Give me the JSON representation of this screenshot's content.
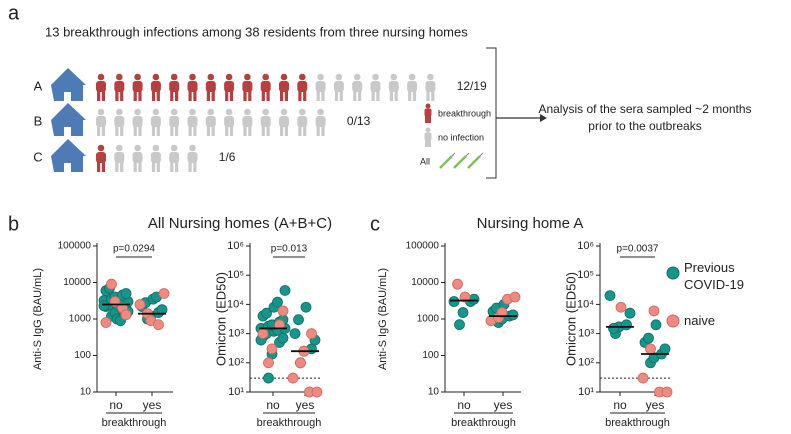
{
  "figure": {
    "label": "a",
    "title": "13 breakthrough infections among 38 residents from three nursing homes",
    "homes": [
      {
        "name": "A",
        "breakthrough": 12,
        "total": 19,
        "fraction": "12/19"
      },
      {
        "name": "B",
        "breakthrough": 0,
        "total": 13,
        "fraction": "0/13"
      },
      {
        "name": "C",
        "breakthrough": 1,
        "total": 6,
        "fraction": "1/6"
      }
    ],
    "legend": {
      "breakthrough": "breakthrough",
      "no_infection": "no infection",
      "vaccinated": "All"
    },
    "analysis": [
      "Analysis of the sera sampled ~2 months",
      "prior to the outbreaks"
    ]
  },
  "panels": [
    {
      "label": "b",
      "title": "All Nursing homes (A+B+C)"
    },
    {
      "label": "c",
      "title": "Nursing home A"
    }
  ],
  "chart_data": [
    {
      "type": "scatter",
      "ylabel": "Anti-S IgG (BAU/mL)",
      "xlabel": "breakthrough",
      "categories": [
        "no",
        "yes"
      ],
      "log_scale": true,
      "ylim": [
        10,
        100000
      ],
      "yticks": [
        10,
        100,
        1000,
        10000,
        100000
      ],
      "annotation": "p=0.0294",
      "medians": [
        2500,
        1400
      ],
      "series": [
        {
          "name": "Previous COVID-19",
          "color": "#16968a",
          "x": [
            "no",
            "no",
            "no",
            "no",
            "no",
            "no",
            "no",
            "no",
            "no",
            "no",
            "no",
            "no",
            "no",
            "no",
            "no",
            "no",
            "no",
            "no",
            "no",
            "no",
            "yes",
            "yes",
            "yes",
            "yes",
            "yes",
            "yes",
            "yes",
            "yes"
          ],
          "values": [
            1200,
            1500,
            1800,
            2000,
            2200,
            2500,
            2500,
            2800,
            3000,
            3200,
            3500,
            4000,
            4500,
            5000,
            6000,
            7000,
            1000,
            900,
            1600,
            2300,
            1000,
            1200,
            1500,
            1800,
            2200,
            2800,
            3500,
            4000
          ]
        },
        {
          "name": "naive",
          "color": "#f08a80",
          "x": [
            "no",
            "no",
            "no",
            "no",
            "no",
            "yes",
            "yes",
            "yes",
            "yes",
            "yes"
          ],
          "values": [
            9000,
            3000,
            2000,
            1300,
            800,
            5000,
            2500,
            1400,
            900,
            700
          ]
        }
      ]
    },
    {
      "type": "scatter",
      "ylabel": "Omicron (ED50)",
      "xlabel": "breakthrough",
      "categories": [
        "no",
        "yes"
      ],
      "log_scale": true,
      "ylim": [
        10,
        1000000
      ],
      "yticks": [
        {
          "value": 10,
          "label": "10¹"
        },
        {
          "value": 100,
          "label": "10²"
        },
        {
          "value": 1000,
          "label": "10³"
        },
        {
          "value": 10000,
          "label": "10⁴"
        },
        {
          "value": 100000,
          "label": "10⁵"
        },
        {
          "value": 1000000,
          "label": "10⁶"
        }
      ],
      "annotation": "p=0.013",
      "medians": [
        1500,
        250
      ],
      "reference_line": 30,
      "series": [
        {
          "name": "Previous COVID-19",
          "color": "#16968a",
          "x": [
            "no",
            "no",
            "no",
            "no",
            "no",
            "no",
            "no",
            "no",
            "no",
            "no",
            "no",
            "no",
            "no",
            "no",
            "no",
            "no",
            "no",
            "no",
            "no",
            "no",
            "yes",
            "yes",
            "yes",
            "yes",
            "yes",
            "yes",
            "yes"
          ],
          "values": [
            30,
            200,
            500,
            700,
            800,
            1000,
            1200,
            1300,
            1500,
            1500,
            1800,
            2000,
            2500,
            3000,
            4000,
            5000,
            8000,
            12000,
            30000,
            600,
            100,
            250,
            300,
            600,
            1000,
            3000,
            8000
          ]
        },
        {
          "name": "naive",
          "color": "#f08a80",
          "x": [
            "no",
            "no",
            "no",
            "no",
            "no",
            "yes",
            "yes",
            "yes",
            "yes",
            "yes",
            "yes"
          ],
          "values": [
            100,
            300,
            2000,
            6000,
            1000,
            10,
            10,
            30,
            100,
            250,
            1000
          ]
        }
      ]
    },
    {
      "type": "scatter",
      "ylabel": "Anti-S IgG (BAU/mL)",
      "xlabel": "breakthrough",
      "categories": [
        "no",
        "yes"
      ],
      "log_scale": true,
      "ylim": [
        10,
        100000
      ],
      "yticks": [
        10,
        100,
        1000,
        10000,
        100000
      ],
      "medians": [
        3200,
        1200
      ],
      "series": [
        {
          "name": "Previous COVID-19",
          "color": "#16968a",
          "x": [
            "no",
            "no",
            "no",
            "no",
            "no",
            "yes",
            "yes",
            "yes",
            "yes",
            "yes",
            "yes",
            "yes"
          ],
          "values": [
            700,
            1500,
            3000,
            3500,
            3000,
            800,
            1000,
            1200,
            1300,
            1600,
            2000,
            2500
          ]
        },
        {
          "name": "naive",
          "color": "#f08a80",
          "x": [
            "no",
            "no",
            "yes",
            "yes",
            "yes",
            "yes",
            "yes"
          ],
          "values": [
            9000,
            4000,
            3500,
            4000,
            900,
            1100,
            1500
          ]
        }
      ]
    },
    {
      "type": "scatter",
      "ylabel": "Omicron (ED50)",
      "xlabel": "breakthrough",
      "categories": [
        "no",
        "yes"
      ],
      "log_scale": true,
      "ylim": [
        10,
        1000000
      ],
      "yticks": [
        {
          "value": 10,
          "label": "10¹"
        },
        {
          "value": 100,
          "label": "10²"
        },
        {
          "value": 1000,
          "label": "10³"
        },
        {
          "value": 10000,
          "label": "10⁴"
        },
        {
          "value": 100000,
          "label": "10⁵"
        },
        {
          "value": 1000000,
          "label": "10⁶"
        }
      ],
      "annotation": "p=0.0037",
      "medians": [
        1700,
        200
      ],
      "reference_line": 30,
      "series": [
        {
          "name": "Previous COVID-19",
          "color": "#16968a",
          "x": [
            "no",
            "no",
            "no",
            "no",
            "no",
            "no",
            "yes",
            "yes",
            "yes",
            "yes",
            "yes",
            "yes",
            "yes"
          ],
          "values": [
            1000,
            1700,
            2000,
            5000,
            20000,
            1500,
            100,
            150,
            200,
            300,
            500,
            700,
            2000
          ]
        },
        {
          "name": "naive",
          "color": "#f08a80",
          "x": [
            "no",
            "yes",
            "yes",
            "yes",
            "yes",
            "yes"
          ],
          "values": [
            8000,
            10,
            10,
            30,
            300,
            6000
          ]
        }
      ]
    }
  ]
}
